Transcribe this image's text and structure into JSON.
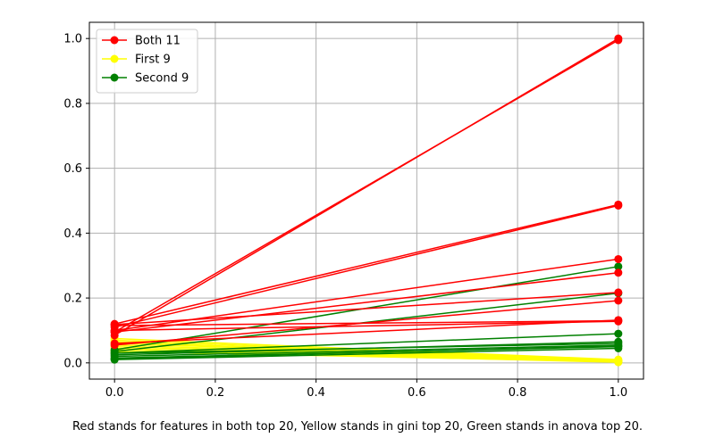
{
  "chart_data": {
    "type": "line",
    "x": [
      0,
      1
    ],
    "xlim": [
      -0.05,
      1.05
    ],
    "ylim": [
      -0.05,
      1.05
    ],
    "x_ticks": [
      0.0,
      0.2,
      0.4,
      0.6,
      0.8,
      1.0
    ],
    "y_ticks": [
      0.0,
      0.2,
      0.4,
      0.6,
      0.8,
      1.0
    ],
    "x_tick_labels": [
      "0.0",
      "0.2",
      "0.4",
      "0.6",
      "0.8",
      "1.0"
    ],
    "y_tick_labels": [
      "0.0",
      "0.2",
      "0.4",
      "0.6",
      "0.8",
      "1.0"
    ],
    "grid": true,
    "legend_position": "top-left",
    "groups": [
      {
        "name": "Both 11",
        "color": "#ff0000",
        "lines": [
          [
            0.085,
            1.0
          ],
          [
            0.095,
            0.995
          ],
          [
            0.12,
            0.488
          ],
          [
            0.11,
            0.485
          ],
          [
            0.1,
            0.32
          ],
          [
            0.095,
            0.278
          ],
          [
            0.118,
            0.217
          ],
          [
            0.055,
            0.192
          ],
          [
            0.06,
            0.132
          ],
          [
            0.115,
            0.13
          ],
          [
            0.1,
            0.128
          ]
        ]
      },
      {
        "name": "First 9",
        "color": "#ffff00",
        "lines": [
          [
            0.075,
            0.01
          ],
          [
            0.07,
            0.007
          ],
          [
            0.065,
            0.005
          ],
          [
            0.06,
            0.008
          ],
          [
            0.055,
            0.006
          ],
          [
            0.05,
            0.004
          ],
          [
            0.045,
            0.003
          ],
          [
            0.04,
            0.002
          ],
          [
            0.035,
            0.004
          ]
        ]
      },
      {
        "name": "Second 9",
        "color": "#008000",
        "lines": [
          [
            0.04,
            0.297
          ],
          [
            0.035,
            0.215
          ],
          [
            0.03,
            0.09
          ],
          [
            0.025,
            0.065
          ],
          [
            0.03,
            0.06
          ],
          [
            0.02,
            0.055
          ],
          [
            0.015,
            0.05
          ],
          [
            0.01,
            0.045
          ],
          [
            0.012,
            0.052
          ]
        ]
      }
    ]
  },
  "caption": "Red stands for features in both top 20, Yellow stands in gini top 20, Green stands in anova top 20."
}
